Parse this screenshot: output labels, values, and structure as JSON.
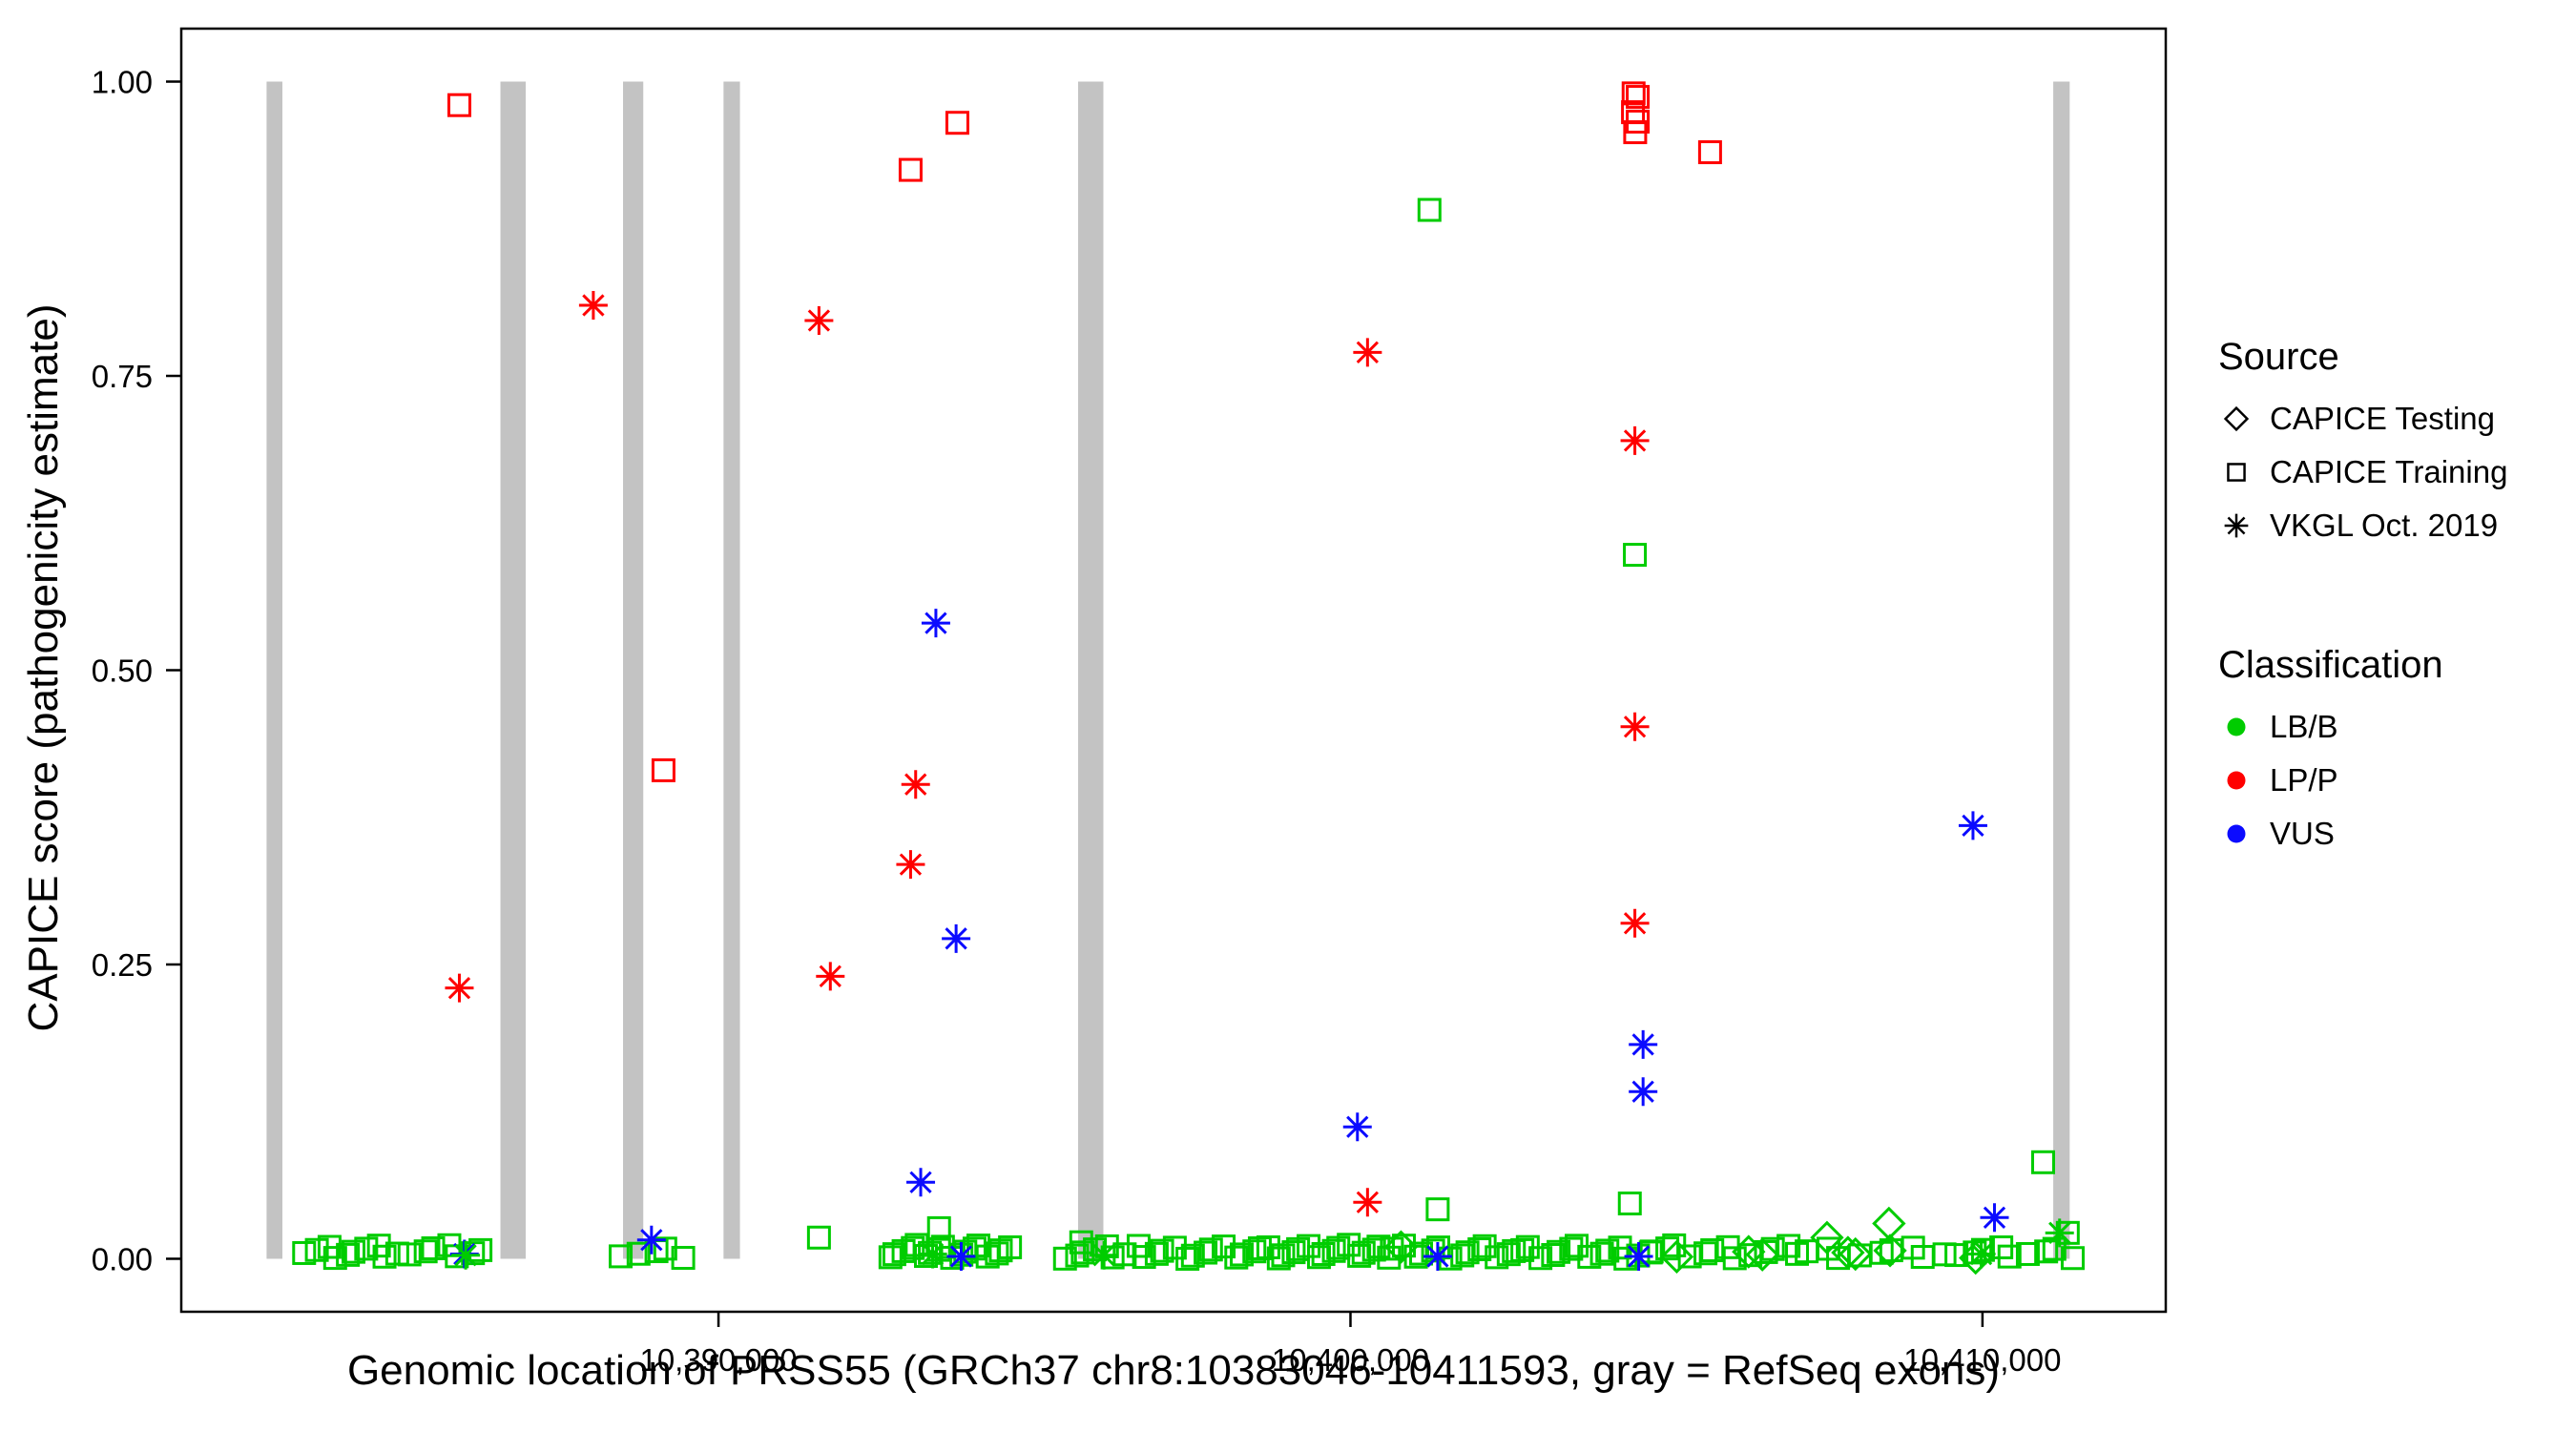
{
  "axes": {
    "y_label": "CAPICE score (pathogenicity estimate)",
    "x_label": "Genomic location of PRSS55 (GRCh37 chr8:10383046-10411593, gray = RefSeq exons)"
  },
  "legend": {
    "source_title": "Source",
    "source_items": [
      {
        "label": "CAPICE Testing",
        "shape": "diamond"
      },
      {
        "label": "CAPICE Training",
        "shape": "square"
      },
      {
        "label": "VKGL Oct. 2019",
        "shape": "asterisk"
      }
    ],
    "classification_title": "Classification",
    "classification_items": [
      {
        "label": "LB/B",
        "color": "#00CC00"
      },
      {
        "label": "LP/P",
        "color": "#FF0000"
      },
      {
        "label": "VUS",
        "color": "#0B0BFF"
      }
    ]
  },
  "chart_data": {
    "type": "scatter",
    "title": "",
    "xlabel": "Genomic location of PRSS55 (GRCh37 chr8:10383046-10411593, gray = RefSeq exons)",
    "ylabel": "CAPICE score (pathogenicity estimate)",
    "x_domain": [
      10381500,
      10412900
    ],
    "y_domain": [
      -0.045,
      1.045
    ],
    "x_ticks": [
      {
        "value": 10390000,
        "label": "10,390,000"
      },
      {
        "value": 10400000,
        "label": "10,400,000"
      },
      {
        "value": 10410000,
        "label": "10,410,000"
      }
    ],
    "y_ticks": [
      {
        "value": 0.0,
        "label": "0.00"
      },
      {
        "value": 0.25,
        "label": "0.25"
      },
      {
        "value": 0.5,
        "label": "0.50"
      },
      {
        "value": 0.75,
        "label": "0.75"
      },
      {
        "value": 1.0,
        "label": "1.00"
      }
    ],
    "exon_color": "#C3C3C3",
    "exons": [
      [
        10382850,
        10383100
      ],
      [
        10386550,
        10386950
      ],
      [
        10388490,
        10388810
      ],
      [
        10390080,
        10390340
      ],
      [
        10395690,
        10396090
      ],
      [
        10411120,
        10411380
      ]
    ],
    "colors": {
      "LB/B": "#00CC00",
      "LP/P": "#FF0000",
      "VUS": "#0B0BFF"
    },
    "shapes": {
      "CAPICE Testing": "diamond",
      "CAPICE Training": "square",
      "VKGL Oct. 2019": "asterisk"
    },
    "points": [
      [
        10385900,
        0.98,
        "LP/P",
        "CAPICE Training"
      ],
      [
        10393040,
        0.925,
        "LP/P",
        "CAPICE Training"
      ],
      [
        10393780,
        0.965,
        "LP/P",
        "CAPICE Training"
      ],
      [
        10389130,
        0.415,
        "LP/P",
        "CAPICE Training"
      ],
      [
        10404480,
        0.99,
        "LP/P",
        "CAPICE Training"
      ],
      [
        10404545,
        0.987,
        "LP/P",
        "CAPICE Training"
      ],
      [
        10404470,
        0.974,
        "LP/P",
        "CAPICE Training"
      ],
      [
        10404545,
        0.966,
        "LP/P",
        "CAPICE Training"
      ],
      [
        10404505,
        0.957,
        "LP/P",
        "CAPICE Training"
      ],
      [
        10405690,
        0.94,
        "LP/P",
        "CAPICE Training"
      ],
      [
        10388020,
        0.81,
        "LP/P",
        "VKGL Oct. 2019"
      ],
      [
        10391590,
        0.797,
        "LP/P",
        "VKGL Oct. 2019"
      ],
      [
        10400270,
        0.77,
        "LP/P",
        "VKGL Oct. 2019"
      ],
      [
        10404500,
        0.695,
        "LP/P",
        "VKGL Oct. 2019"
      ],
      [
        10404500,
        0.452,
        "LP/P",
        "VKGL Oct. 2019"
      ],
      [
        10404500,
        0.285,
        "LP/P",
        "VKGL Oct. 2019"
      ],
      [
        10393120,
        0.403,
        "LP/P",
        "VKGL Oct. 2019"
      ],
      [
        10393040,
        0.335,
        "LP/P",
        "VKGL Oct. 2019"
      ],
      [
        10391770,
        0.24,
        "LP/P",
        "VKGL Oct. 2019"
      ],
      [
        10385900,
        0.23,
        "LP/P",
        "VKGL Oct. 2019"
      ],
      [
        10400270,
        0.048,
        "LP/P",
        "VKGL Oct. 2019"
      ],
      [
        10393440,
        0.54,
        "VUS",
        "VKGL Oct. 2019"
      ],
      [
        10393760,
        0.272,
        "VUS",
        "VKGL Oct. 2019"
      ],
      [
        10400110,
        0.112,
        "VUS",
        "VKGL Oct. 2019"
      ],
      [
        10404630,
        0.182,
        "VUS",
        "VKGL Oct. 2019"
      ],
      [
        10404630,
        0.142,
        "VUS",
        "VKGL Oct. 2019"
      ],
      [
        10409850,
        0.368,
        "VUS",
        "VKGL Oct. 2019"
      ],
      [
        10393200,
        0.065,
        "VUS",
        "VKGL Oct. 2019"
      ],
      [
        10410190,
        0.035,
        "VUS",
        "VKGL Oct. 2019"
      ],
      [
        10388940,
        0.016,
        "VUS",
        "VKGL Oct. 2019"
      ],
      [
        10385980,
        0.004,
        "VUS",
        "VKGL Oct. 2019"
      ],
      [
        10393840,
        0.002,
        "VUS",
        "VKGL Oct. 2019"
      ],
      [
        10401380,
        0.002,
        "VUS",
        "VKGL Oct. 2019"
      ],
      [
        10404560,
        0.002,
        "VUS",
        "VKGL Oct. 2019"
      ],
      [
        10401250,
        0.891,
        "LB/B",
        "CAPICE Training"
      ],
      [
        10404500,
        0.598,
        "LB/B",
        "CAPICE Training"
      ],
      [
        10410960,
        0.082,
        "LB/B",
        "CAPICE Training"
      ],
      [
        10401380,
        0.042,
        "LB/B",
        "CAPICE Training"
      ],
      [
        10404420,
        0.047,
        "LB/B",
        "CAPICE Training"
      ],
      [
        10391590,
        0.018,
        "LB/B",
        "CAPICE Training"
      ],
      [
        10393490,
        0.026,
        "LB/B",
        "CAPICE Training"
      ],
      [
        10395740,
        0.014,
        "LB/B",
        "CAPICE Training"
      ],
      [
        10411350,
        0.022,
        "LB/B",
        "CAPICE Training"
      ],
      [
        10407540,
        0.018,
        "LB/B",
        "CAPICE Testing"
      ],
      [
        10408520,
        0.03,
        "LB/B",
        "CAPICE Testing"
      ],
      [
        10400800,
        0.01,
        "LB/B",
        "CAPICE Testing"
      ],
      [
        10407990,
        0.004,
        "LB/B",
        "CAPICE Testing"
      ],
      [
        10406300,
        0.006,
        "LB/B",
        "CAPICE Testing"
      ],
      [
        10411220,
        0.022,
        "LB/B",
        "VKGL Oct. 2019"
      ],
      [
        10409980,
        0.004,
        "LB/B",
        "VKGL Oct. 2019"
      ],
      [
        10393390,
        0.004,
        "LB/B",
        "VKGL Oct. 2019"
      ],
      [
        10396100,
        0.003,
        "LB/B",
        "VKGL Oct. 2019"
      ],
      [
        10386000,
        0.003,
        "LB/B",
        "VKGL Oct. 2019"
      ]
    ],
    "baseline_clusters": [
      {
        "from": 10383500,
        "to": 10384900,
        "n": 10,
        "cls": "LB/B",
        "src": "CAPICE Training",
        "ymax": 0.012
      },
      {
        "from": 10385100,
        "to": 10386300,
        "n": 7,
        "cls": "LB/B",
        "src": "CAPICE Training",
        "ymax": 0.012
      },
      {
        "from": 10388500,
        "to": 10389400,
        "n": 5,
        "cls": "LB/B",
        "src": "CAPICE Training",
        "ymax": 0.01
      },
      {
        "from": 10392700,
        "to": 10394600,
        "n": 18,
        "cls": "LB/B",
        "src": "CAPICE Training",
        "ymax": 0.012
      },
      {
        "from": 10395500,
        "to": 10396400,
        "n": 7,
        "cls": "LB/B",
        "src": "CAPICE Training",
        "ymax": 0.012
      },
      {
        "from": 10396600,
        "to": 10398600,
        "n": 14,
        "cls": "LB/B",
        "src": "CAPICE Training",
        "ymax": 0.012
      },
      {
        "from": 10398700,
        "to": 10400600,
        "n": 16,
        "cls": "LB/B",
        "src": "CAPICE Training",
        "ymax": 0.012
      },
      {
        "from": 10400700,
        "to": 10402600,
        "n": 14,
        "cls": "LB/B",
        "src": "CAPICE Training",
        "ymax": 0.012
      },
      {
        "from": 10402700,
        "to": 10404700,
        "n": 14,
        "cls": "LB/B",
        "src": "CAPICE Training",
        "ymax": 0.012
      },
      {
        "from": 10404800,
        "to": 10406900,
        "n": 12,
        "cls": "LB/B",
        "src": "CAPICE Training",
        "ymax": 0.012
      },
      {
        "from": 10407000,
        "to": 10409400,
        "n": 10,
        "cls": "LB/B",
        "src": "CAPICE Training",
        "ymax": 0.01
      },
      {
        "from": 10409600,
        "to": 10411400,
        "n": 9,
        "cls": "LB/B",
        "src": "CAPICE Training",
        "ymax": 0.01
      },
      {
        "from": 10405500,
        "to": 10409800,
        "n": 5,
        "cls": "LB/B",
        "src": "CAPICE Testing",
        "ymax": 0.008
      }
    ]
  }
}
